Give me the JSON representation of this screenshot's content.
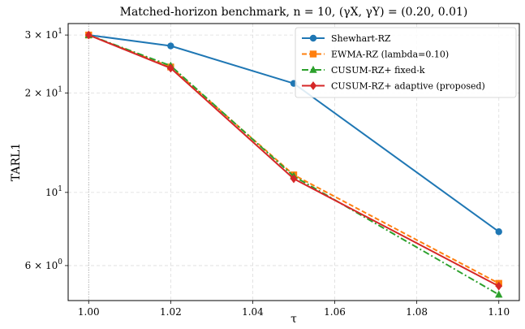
{
  "chart_data": {
    "type": "line",
    "title": "Matched-horizon benchmark, n = 10, (γX, γY) = (0.20, 0.01)",
    "xlabel": "τ",
    "ylabel": "TARL1",
    "x": [
      1.0,
      1.02,
      1.05,
      1.1
    ],
    "xlim": [
      0.995,
      1.105
    ],
    "ylim": [
      4.7,
      32.5
    ],
    "yscale": "log",
    "xticks": [
      1.0,
      1.02,
      1.04,
      1.06,
      1.08,
      1.1
    ],
    "xtick_labels": [
      "1.00",
      "1.02",
      "1.04",
      "1.06",
      "1.08",
      "1.10"
    ],
    "yticks": [
      {
        "value": 30,
        "mant": "3 × 10",
        "exp": "1"
      },
      {
        "value": 20,
        "mant": "2 × 10",
        "exp": "1"
      },
      {
        "value": 10,
        "mant": "10",
        "exp": "1"
      },
      {
        "value": 6,
        "mant": "6 × 10",
        "exp": "0"
      }
    ],
    "grid": true,
    "reference_line_x": 1.0,
    "legend_position": "top-right",
    "series": [
      {
        "name": "Shewhart-RZ",
        "color": "#1f77b4",
        "marker": "circle",
        "linestyle": "solid",
        "values": [
          30.0,
          27.8,
          21.4,
          7.6
        ]
      },
      {
        "name": "EWMA-RZ (lambda=0.10)",
        "color": "#ff7f0e",
        "marker": "square",
        "linestyle": "dashed",
        "values": [
          30.0,
          24.0,
          11.3,
          5.3
        ]
      },
      {
        "name": "CUSUM-RZ+ fixed-k",
        "color": "#2ca02c",
        "marker": "triangle",
        "linestyle": "dashdot",
        "values": [
          30.0,
          24.2,
          11.2,
          4.9
        ]
      },
      {
        "name": "CUSUM-RZ+ adaptive (proposed)",
        "color": "#d62728",
        "marker": "diamond",
        "linestyle": "solid",
        "values": [
          30.0,
          23.8,
          11.0,
          5.2
        ]
      }
    ]
  }
}
